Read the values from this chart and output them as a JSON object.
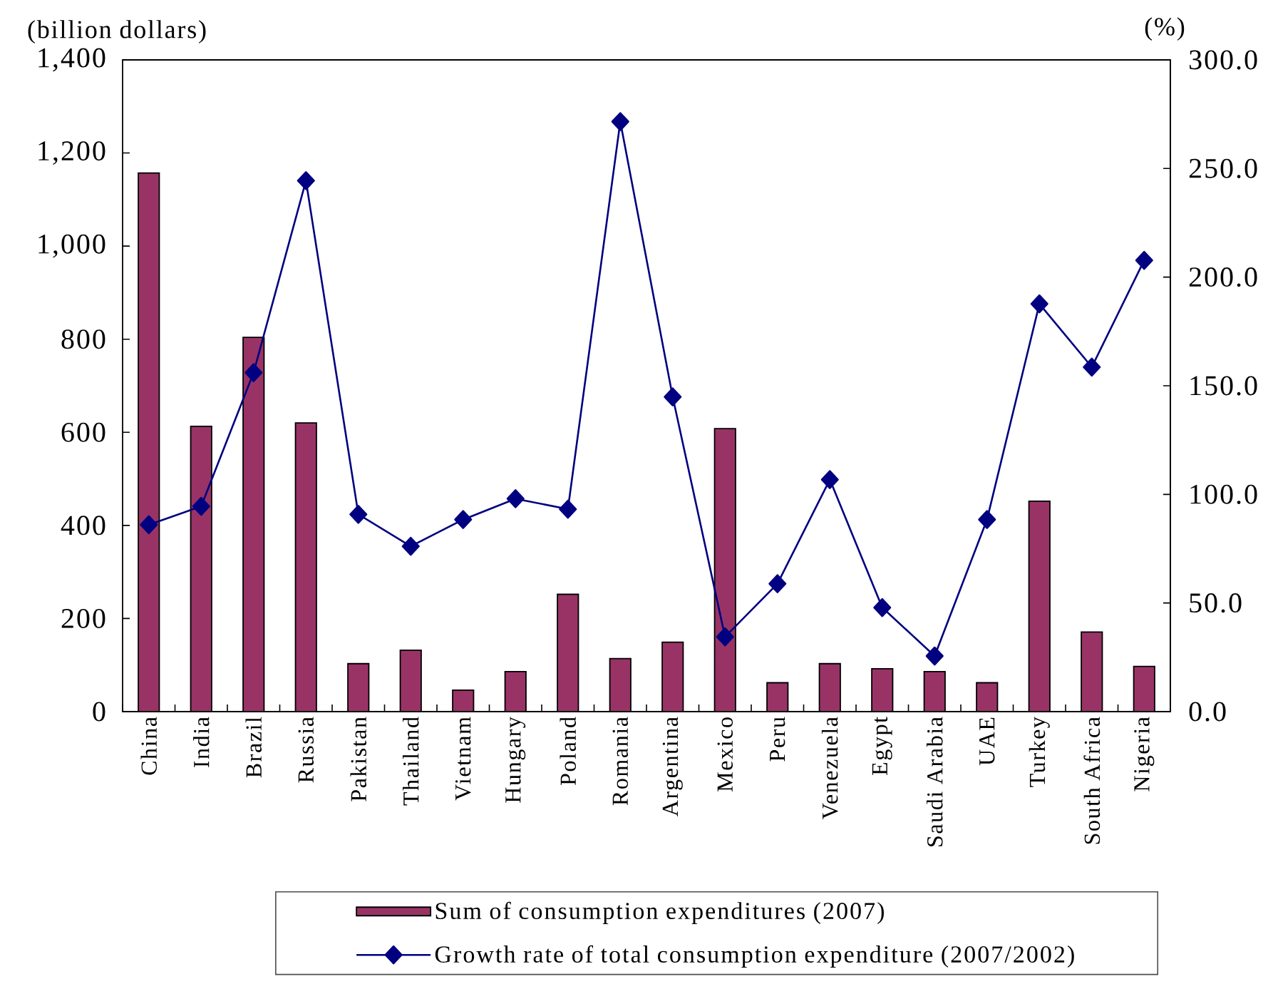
{
  "chart_data": {
    "type": "bar",
    "ylabel": "(billion dollars)",
    "y2label": "(%)",
    "categories": [
      "China",
      "India",
      "Brazil",
      "Russia",
      "Pakistan",
      "Thailand",
      "Vietnam",
      "Hungary",
      "Poland",
      "Romania",
      "Argentina",
      "Mexico",
      "Peru",
      "Venezuela",
      "Egypt",
      "Saudi Arabia",
      "UAE",
      "Turkey",
      "South Africa",
      "Nigeria"
    ],
    "series": [
      {
        "name": "Sum of consumption expenditures (2007)",
        "color": "#993366",
        "values": [
          1157,
          613,
          804,
          620,
          103,
          132,
          46,
          86,
          252,
          114,
          149,
          608,
          62,
          103,
          92,
          86,
          62,
          452,
          171,
          97
        ]
      },
      {
        "name": "Growth rate of total consumption expenditure (2007/2002)",
        "type": "line",
        "axis": "y2",
        "color": "#000080",
        "marker": "diamond",
        "line_style": "solid",
        "values": [
          86.0,
          94.5,
          156.0,
          244.4,
          90.8,
          76.1,
          88.4,
          98.0,
          93.2,
          271.6,
          144.9,
          34.4,
          58.9,
          106.8,
          47.9,
          25.6,
          88.4,
          187.7,
          158.6,
          207.7
        ]
      }
    ],
    "ylim": [
      0,
      1400
    ],
    "yticks": [
      0,
      200,
      400,
      600,
      800,
      {
        "value": 1000,
        "label": "1,000"
      },
      {
        "value": 1200,
        "label": "1,200"
      },
      {
        "value": 1400,
        "label": "1,400"
      }
    ],
    "y2lim": [
      0,
      300
    ],
    "y2ticks": [
      {
        "value": 0,
        "label": "0.0"
      },
      {
        "value": 50,
        "label": "50.0"
      },
      {
        "value": 100,
        "label": "100.0"
      },
      {
        "value": 150,
        "label": "150.0"
      },
      {
        "value": 200,
        "label": "200.0"
      },
      {
        "value": 250,
        "label": "250.0"
      },
      {
        "value": 300,
        "label": "300.0"
      }
    ],
    "legend": "bottom"
  }
}
